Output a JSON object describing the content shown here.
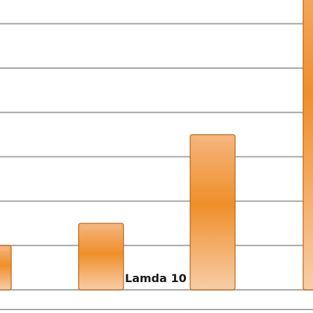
{
  "chart_data": {
    "type": "bar",
    "series": [
      {
        "values": [
          1.0,
          1.5,
          3.5,
          8.0
        ],
        "colors": {
          "top": "#f5b57e",
          "mid": "#ef8f2a",
          "bottom": "#f8cda8",
          "edge": "#b46516"
        }
      }
    ],
    "annotations": [
      "Lamda 10"
    ],
    "grid": true,
    "gridline_color": "#a6a6a6"
  }
}
